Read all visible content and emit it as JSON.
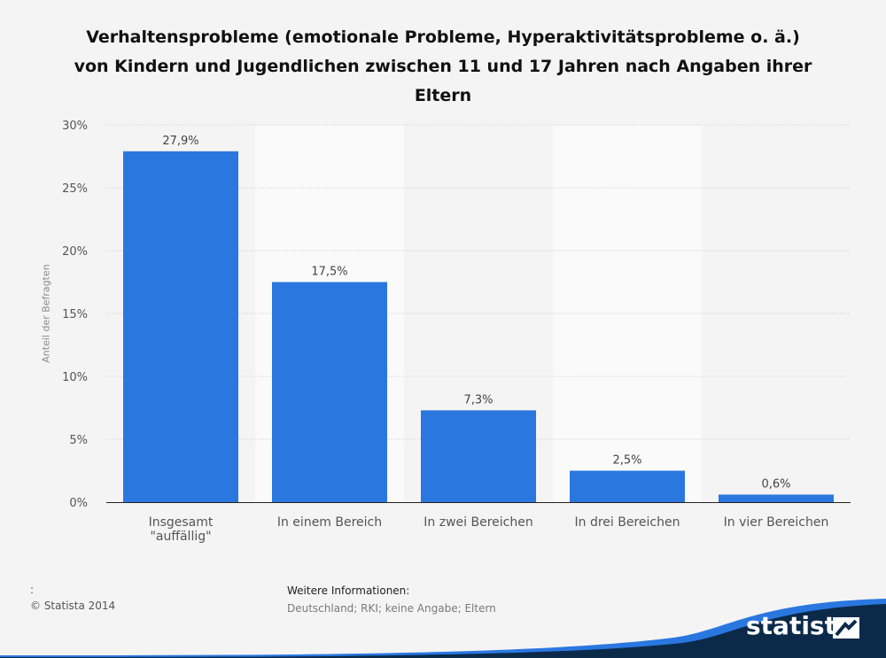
{
  "title_lines": [
    "Verhaltensprobleme (emotionale Probleme, Hyperaktivitätsprobleme o. ä.)",
    "von Kindern und Jugendlichen zwischen 11 und 17 Jahren nach Angaben ihrer",
    "Eltern"
  ],
  "chart_data": {
    "type": "bar",
    "title": "Verhaltensprobleme (emotionale Probleme, Hyperaktivitätsprobleme o. ä.) von Kindern und Jugendlichen zwischen 11 und 17 Jahren nach Angaben ihrer Eltern",
    "ylabel": "Anteil der Befragten",
    "xlabel": "",
    "categories": [
      "Insgesamt\n\"auffällig\"",
      "In einem Bereich",
      "In zwei Bereichen",
      "In drei Bereichen",
      "In vier Bereichen"
    ],
    "values": [
      27.9,
      17.5,
      7.3,
      2.5,
      0.6
    ],
    "value_labels": [
      "27,9%",
      "17,5%",
      "7,3%",
      "2,5%",
      "0,6%"
    ],
    "ylim": [
      0,
      30
    ],
    "yticks": [
      0,
      5,
      10,
      15,
      20,
      25,
      30
    ],
    "ytick_labels": [
      "0%",
      "5%",
      "10%",
      "15%",
      "20%",
      "25%",
      "30%"
    ],
    "grid": true,
    "bar_color": "#2a77e0"
  },
  "footer": {
    "left_colon": ":",
    "copyright": "© Statista 2014",
    "info_heading": "Weitere Informationen:",
    "info_text": "Deutschland; RKI; keine Angabe; Eltern"
  },
  "brand": {
    "name": "statista",
    "icon": "statista-logo-icon",
    "color": "#0b2a4a"
  }
}
